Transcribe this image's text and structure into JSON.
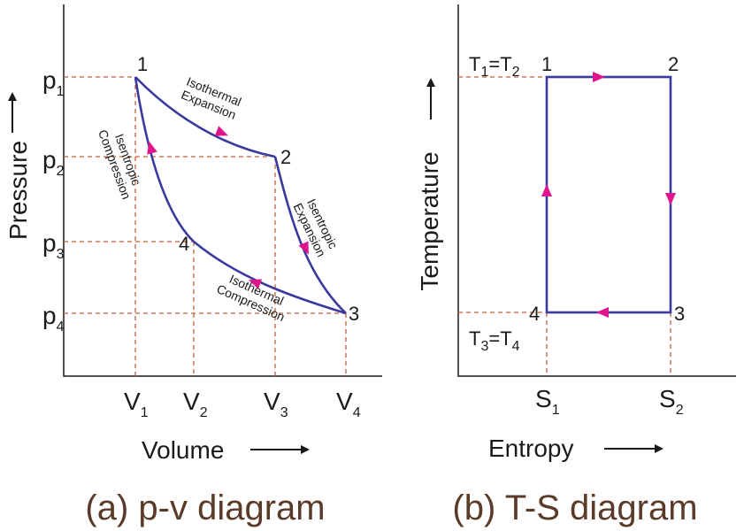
{
  "pv": {
    "caption": "(a) p-v diagram",
    "ylabel": "Pressure",
    "xlabel": "Volume",
    "pressures": [
      {
        "base": "p",
        "sub": "1"
      },
      {
        "base": "p",
        "sub": "2"
      },
      {
        "base": "p",
        "sub": "3"
      },
      {
        "base": "p",
        "sub": "4"
      }
    ],
    "volumes": [
      {
        "base": "V",
        "sub": "1"
      },
      {
        "base": "V",
        "sub": "2"
      },
      {
        "base": "V",
        "sub": "3"
      },
      {
        "base": "V",
        "sub": "4"
      }
    ],
    "points": [
      "1",
      "2",
      "3",
      "4"
    ],
    "processes": {
      "p12": [
        "Isothermal",
        "Expansion"
      ],
      "p23": [
        "Isentropic",
        "Expansion"
      ],
      "p34": [
        "Isothermal",
        "Compression"
      ],
      "p41": [
        "Isentropic",
        "Compression"
      ]
    }
  },
  "ts": {
    "caption": "(b) T-S diagram",
    "ylabel": "Temperature",
    "xlabel": "Entropy",
    "points": [
      "1",
      "2",
      "3",
      "4"
    ],
    "t_top": {
      "a": "T",
      "a_sub": "1",
      "eq": "=",
      "b": "T",
      "b_sub": "2"
    },
    "t_bottom": {
      "a": "T",
      "a_sub": "3",
      "eq": "=",
      "b": "T",
      "b_sub": "4"
    },
    "entropies": [
      {
        "base": "S",
        "sub": "1"
      },
      {
        "base": "S",
        "sub": "2"
      }
    ]
  },
  "colors": {
    "cycle": "#3a3a9e",
    "arrow": "#e0148c",
    "guide": "#c0623a",
    "caption": "#5a3a28"
  }
}
